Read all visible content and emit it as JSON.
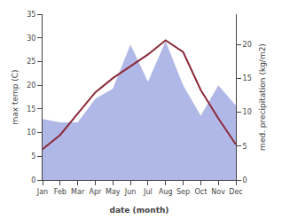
{
  "chart_data": {
    "type": "line",
    "xlabel": "date (month)",
    "ylabel": "max temp (C)",
    "y2label": "med. precipitation (kg/m2)",
    "categories": [
      "Jan",
      "Feb",
      "Mar",
      "Apr",
      "May",
      "Jun",
      "Jul",
      "Aug",
      "Sep",
      "Oct",
      "Nov",
      "Dec"
    ],
    "series": [
      {
        "type": "area",
        "axis": "y2",
        "color": "#b0b8e8",
        "values": [
          9.0,
          8.5,
          8.5,
          12.0,
          13.5,
          20.0,
          14.5,
          20.5,
          14.0,
          9.5,
          14.0,
          11.0
        ]
      },
      {
        "type": "line",
        "color": "#8b2a3a",
        "values": [
          6.5,
          9.5,
          14.0,
          18.5,
          21.5,
          24.0,
          26.5,
          29.5,
          27.0,
          19.0,
          13.0,
          7.5
        ]
      }
    ],
    "ylim": [
      0,
      35
    ],
    "yticks": [
      0,
      5,
      10,
      15,
      20,
      25,
      30,
      35
    ],
    "y2lim": [
      0,
      24.5
    ],
    "y2ticks": [
      0,
      5,
      10,
      15,
      20
    ],
    "grid": false
  }
}
